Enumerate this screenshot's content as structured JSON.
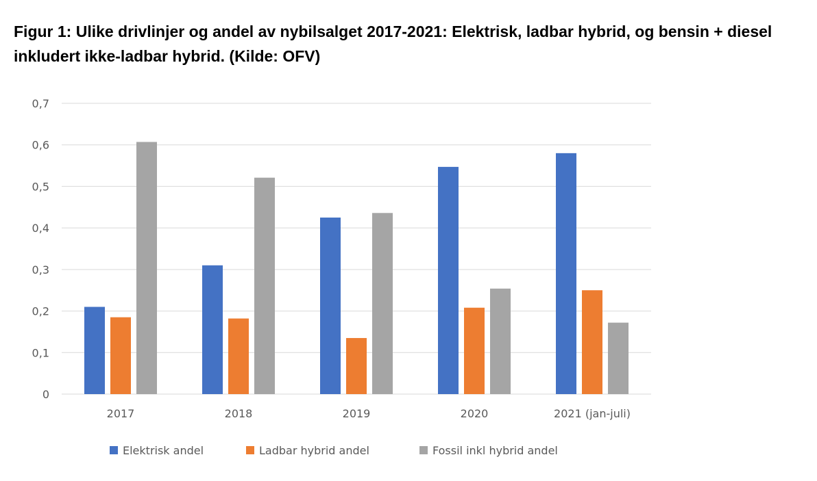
{
  "caption": "Figur 1: Ulike drivlinjer og andel av nybilsalget 2017-2021: Elektrisk, ladbar hybrid, og bensin + diesel inkludert ikke-ladbar hybrid. (Kilde: OFV)",
  "chart_data": {
    "type": "bar",
    "title": "",
    "xlabel": "",
    "ylabel": "",
    "categories": [
      "2017",
      "2018",
      "2019",
      "2020",
      "2021 (jan-juli)"
    ],
    "series": [
      {
        "name": "Elektrisk andel",
        "color": "#4472C4",
        "values": [
          0.21,
          0.31,
          0.425,
          0.547,
          0.58
        ]
      },
      {
        "name": "Ladbar hybrid andel",
        "color": "#ED7D31",
        "values": [
          0.185,
          0.182,
          0.135,
          0.208,
          0.25
        ]
      },
      {
        "name": "Fossil inkl hybrid andel",
        "color": "#A5A5A5",
        "values": [
          0.607,
          0.521,
          0.436,
          0.254,
          0.172
        ]
      }
    ],
    "ylim": [
      0,
      0.7
    ],
    "yticks": [
      {
        "value": 0,
        "label": "0"
      },
      {
        "value": 0.1,
        "label": "0,1"
      },
      {
        "value": 0.2,
        "label": "0,2"
      },
      {
        "value": 0.3,
        "label": "0,3"
      },
      {
        "value": 0.4,
        "label": "0,4"
      },
      {
        "value": 0.5,
        "label": "0,5"
      },
      {
        "value": 0.6,
        "label": "0,6"
      },
      {
        "value": 0.7,
        "label": "0,7"
      }
    ],
    "grid": true,
    "legend_position": "bottom",
    "gridline_color": "#D9D9D9",
    "axis_line_color": "#D9D9D9"
  }
}
